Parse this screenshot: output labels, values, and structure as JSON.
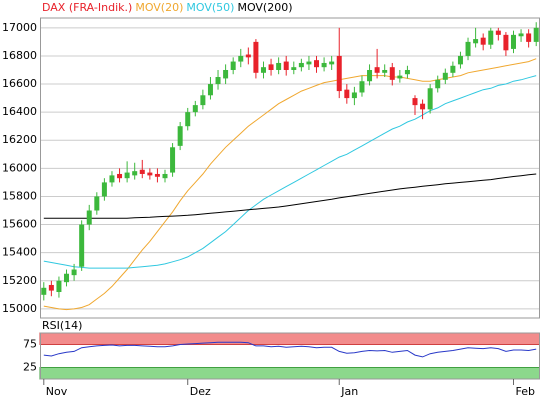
{
  "chart_data": [
    {
      "type": "candlestick",
      "categories": [
        "Nov",
        null,
        null,
        null,
        null,
        null,
        null,
        null,
        null,
        null,
        null,
        null,
        null,
        null,
        null,
        null,
        null,
        null,
        null,
        "Dez",
        null,
        null,
        null,
        null,
        null,
        null,
        null,
        null,
        null,
        null,
        null,
        null,
        null,
        null,
        null,
        null,
        null,
        null,
        null,
        "Jan",
        null,
        null,
        null,
        null,
        null,
        null,
        null,
        null,
        null,
        null,
        null,
        null,
        null,
        null,
        null,
        null,
        null,
        null,
        null,
        null,
        null,
        null,
        "Feb",
        null,
        null,
        null
      ],
      "candles": {
        "name": "DAX (FRA-Indik.)",
        "color": "#e8222b",
        "up_color": "#3cb83c",
        "down_color": "#e8222b",
        "open": [
          15100,
          15170,
          15120,
          15190,
          15240,
          15300,
          15600,
          15700,
          15800,
          15900,
          15960,
          15930,
          15950,
          15990,
          15970,
          15960,
          15930,
          15970,
          16160,
          16300,
          16400,
          16450,
          16520,
          16600,
          16640,
          16700,
          16760,
          16810,
          16900,
          16680,
          16740,
          16700,
          16760,
          16700,
          16720,
          16740,
          16770,
          16720,
          16740,
          16800,
          16560,
          16500,
          16540,
          16620,
          16720,
          16680,
          16720,
          16640,
          16670,
          16500,
          16460,
          16420,
          16570,
          16630,
          16680,
          16740,
          16800,
          16890,
          16930,
          16880,
          16980,
          16950,
          16850,
          16940,
          16960,
          16900
        ],
        "high": [
          15190,
          15200,
          15230,
          15280,
          15320,
          15630,
          15740,
          15830,
          15930,
          15980,
          16000,
          16050,
          16040,
          16060,
          16000,
          16000,
          15990,
          16180,
          16330,
          16430,
          16480,
          16560,
          16650,
          16700,
          16740,
          16790,
          16850,
          16860,
          16920,
          16760,
          16780,
          16790,
          16800,
          16760,
          16780,
          16800,
          16800,
          16790,
          16800,
          17000,
          16600,
          16580,
          16660,
          16740,
          16850,
          16740,
          16750,
          16700,
          16730,
          16520,
          16490,
          16600,
          16660,
          16710,
          16760,
          16830,
          16930,
          17000,
          16960,
          17000,
          17000,
          16970,
          16980,
          16990,
          16990,
          17040
        ],
        "low": [
          15060,
          15090,
          15080,
          15160,
          15200,
          15270,
          15560,
          15670,
          15770,
          15870,
          15900,
          15900,
          15920,
          15930,
          15920,
          15900,
          15900,
          15940,
          16130,
          16270,
          16370,
          16420,
          16490,
          16560,
          16600,
          16670,
          16720,
          16740,
          16640,
          16640,
          16660,
          16670,
          16660,
          16670,
          16690,
          16700,
          16680,
          16690,
          16700,
          16500,
          16460,
          16450,
          16510,
          16590,
          16640,
          16650,
          16590,
          16610,
          16640,
          16380,
          16350,
          16390,
          16540,
          16600,
          16650,
          16710,
          16770,
          16860,
          16840,
          16850,
          16910,
          16800,
          16820,
          16900,
          16860,
          16870
        ],
        "close": [
          15150,
          15130,
          15200,
          15250,
          15280,
          15600,
          15700,
          15800,
          15900,
          15950,
          15930,
          15970,
          15980,
          15960,
          15950,
          15940,
          15960,
          16150,
          16300,
          16400,
          16450,
          16520,
          16600,
          16650,
          16700,
          16760,
          16800,
          16790,
          16680,
          16720,
          16700,
          16750,
          16700,
          16720,
          16750,
          16760,
          16720,
          16750,
          16760,
          16550,
          16500,
          16540,
          16620,
          16700,
          16680,
          16700,
          16630,
          16660,
          16700,
          16450,
          16420,
          16570,
          16630,
          16680,
          16730,
          16800,
          16900,
          16920,
          16880,
          16980,
          16950,
          16840,
          16950,
          16960,
          16900,
          17000
        ]
      },
      "series": [
        {
          "name": "MOV(20)",
          "color": "#f0a830",
          "values": [
            15020,
            15010,
            15000,
            14995,
            15000,
            15010,
            15030,
            15070,
            15110,
            15160,
            15220,
            15280,
            15350,
            15420,
            15480,
            15550,
            15620,
            15690,
            15770,
            15840,
            15900,
            15960,
            16030,
            16090,
            16150,
            16200,
            16250,
            16300,
            16340,
            16380,
            16420,
            16460,
            16490,
            16520,
            16550,
            16570,
            16590,
            16610,
            16620,
            16630,
            16640,
            16650,
            16660,
            16660,
            16660,
            16660,
            16650,
            16650,
            16640,
            16630,
            16620,
            16620,
            16630,
            16640,
            16650,
            16660,
            16680,
            16690,
            16700,
            16710,
            16720,
            16730,
            16740,
            16750,
            16760,
            16780
          ]
        },
        {
          "name": "MOV(50)",
          "color": "#30c8e0",
          "values": [
            15340,
            15330,
            15320,
            15310,
            15300,
            15295,
            15290,
            15290,
            15290,
            15290,
            15290,
            15290,
            15295,
            15300,
            15305,
            15310,
            15320,
            15335,
            15350,
            15370,
            15400,
            15430,
            15470,
            15510,
            15550,
            15600,
            15650,
            15700,
            15740,
            15780,
            15810,
            15840,
            15870,
            15900,
            15930,
            15960,
            15990,
            16020,
            16050,
            16080,
            16100,
            16130,
            16160,
            16190,
            16220,
            16250,
            16280,
            16300,
            16330,
            16350,
            16380,
            16410,
            16430,
            16460,
            16480,
            16500,
            16520,
            16540,
            16560,
            16570,
            16590,
            16600,
            16620,
            16630,
            16645,
            16660
          ]
        },
        {
          "name": "MOV(200)",
          "color": "#000000",
          "values": [
            15645,
            15645,
            15645,
            15645,
            15645,
            15645,
            15645,
            15645,
            15645,
            15645,
            15645,
            15645,
            15648,
            15650,
            15652,
            15655,
            15658,
            15660,
            15663,
            15666,
            15670,
            15675,
            15680,
            15685,
            15690,
            15695,
            15700,
            15705,
            15710,
            15715,
            15720,
            15725,
            15732,
            15740,
            15748,
            15756,
            15764,
            15772,
            15780,
            15790,
            15798,
            15806,
            15814,
            15822,
            15830,
            15838,
            15846,
            15854,
            15860,
            15866,
            15872,
            15878,
            15884,
            15890,
            15895,
            15900,
            15905,
            15910,
            15915,
            15920,
            15928,
            15935,
            15942,
            15948,
            15954,
            15960
          ]
        }
      ],
      "ylim": [
        14935,
        17070
      ],
      "yticks": [
        15000,
        15200,
        15400,
        15600,
        15800,
        16000,
        16200,
        16400,
        16600,
        16800,
        17000
      ],
      "grid": true
    },
    {
      "type": "line",
      "title": "RSI(14)",
      "series": [
        {
          "name": "RSI(14)",
          "color": "#2838c8",
          "values": [
            52,
            50,
            55,
            58,
            60,
            68,
            70,
            72,
            73,
            74,
            72,
            73,
            73,
            72,
            71,
            70,
            70,
            72,
            75,
            76,
            77,
            78,
            79,
            80,
            80,
            80,
            80,
            79,
            72,
            72,
            70,
            71,
            69,
            70,
            71,
            70,
            68,
            69,
            69,
            60,
            56,
            57,
            60,
            62,
            61,
            62,
            58,
            60,
            62,
            52,
            48,
            55,
            58,
            60,
            62,
            65,
            68,
            67,
            66,
            68,
            66,
            60,
            63,
            63,
            62,
            65
          ]
        }
      ],
      "ylim": [
        0,
        100
      ],
      "yticks": [
        25,
        75
      ],
      "upper_band_color": "#f28c8c",
      "lower_band_color": "#8cd88c",
      "grid": true
    }
  ]
}
